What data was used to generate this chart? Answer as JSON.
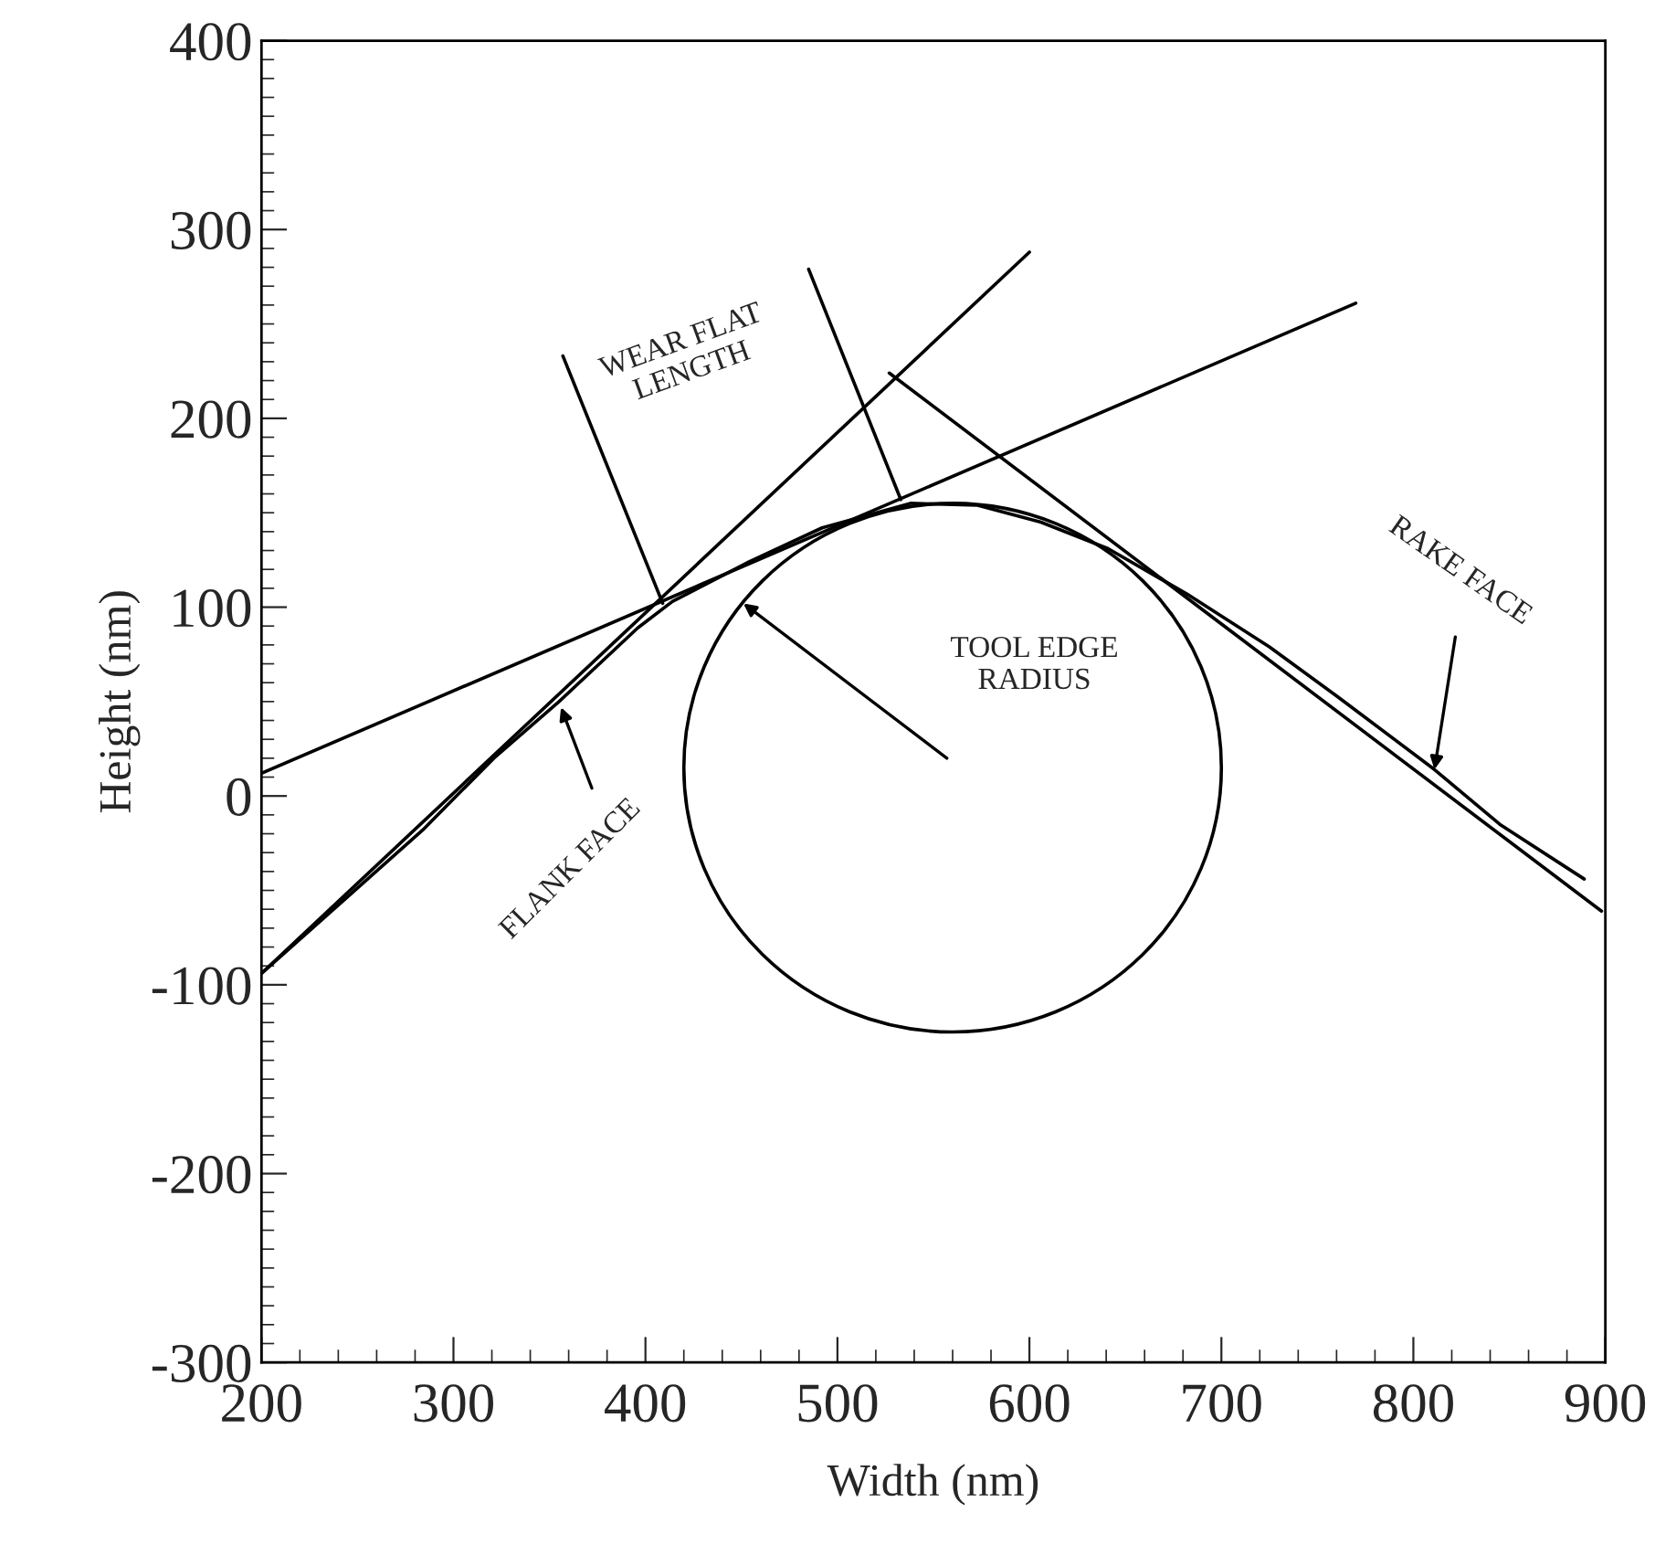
{
  "chart_data": {
    "type": "line",
    "xlabel": "Width (nm)",
    "ylabel": "Height (nm)",
    "xlim": [
      200,
      900
    ],
    "ylim": [
      -300,
      400
    ],
    "xticks": [
      200,
      300,
      400,
      500,
      600,
      700,
      800,
      900
    ],
    "yticks": [
      -300,
      -200,
      -100,
      0,
      100,
      200,
      300,
      400
    ],
    "grid": false,
    "legend": false,
    "marker": "none",
    "line_style": "solid",
    "series": [
      {
        "color": "#000000",
        "x": [
          200,
          284,
          321,
          355,
          396,
          414,
          454,
          492,
          538,
          573,
          606,
          641,
          682,
          725,
          760,
          811,
          845,
          889
        ],
        "values": [
          -94,
          -18,
          20,
          50,
          89,
          103,
          124,
          142,
          155,
          154,
          145,
          131,
          107,
          79,
          53,
          14,
          -15,
          -44
        ]
      },
      {
        "color": "#000000",
        "x": [
          200,
          600
        ],
        "values": [
          -94,
          288
        ]
      },
      {
        "color": "#000000",
        "x": [
          200,
          770
        ],
        "values": [
          12,
          261
        ]
      },
      {
        "color": "#000000",
        "x": [
          527,
          898
        ],
        "values": [
          224,
          -61
        ]
      },
      {
        "color": "#000000",
        "x": [
          357,
          409
        ],
        "values": [
          233,
          102
        ]
      },
      {
        "color": "#000000",
        "x": [
          485,
          533
        ],
        "values": [
          279,
          157
        ]
      }
    ],
    "annotations": [
      "WEAR FLAT\nLENGTH",
      "TOOL EDGE\nRADIUS",
      {
        "text": "RAKE FACE",
        "x": 811,
        "y": 14
      },
      {
        "text": "FLANK FACE",
        "x": 356,
        "y": 47
      }
    ]
  }
}
